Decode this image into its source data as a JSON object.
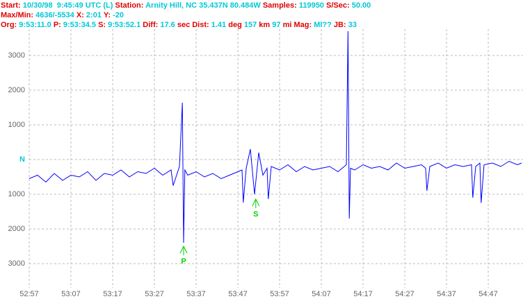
{
  "header": {
    "lines": [
      [
        "Start:",
        "10/30/98  9:45:49 UTC (L)",
        "Station:",
        "Arnity Hill, NC 35.437N 80.484W",
        "Samples:",
        "119950",
        "S/Sec:",
        "50.00"
      ],
      [
        "Max/Min:",
        "4636/-5534",
        "X:",
        "2:01",
        "Y:",
        "-20"
      ],
      [
        "Org:",
        "9:53:11.0",
        "P:",
        "9:53:34.5",
        "S:",
        "9:53:52.1",
        "Diff:",
        "17.6",
        "sec Dist:",
        "1.41",
        "deg",
        "157",
        "km",
        "97",
        "mi Mag:",
        "Ml??",
        "JB:",
        "33"
      ]
    ]
  },
  "chart_data": {
    "type": "line",
    "grid": true,
    "xlim": [
      3177,
      3295.33
    ],
    "ylim": [
      -3700,
      3760
    ],
    "xticks": [
      {
        "value": 3177,
        "label": "52:57"
      },
      {
        "value": 3187,
        "label": "53:07"
      },
      {
        "value": 3197,
        "label": "53:17"
      },
      {
        "value": 3207,
        "label": "53:27"
      },
      {
        "value": 3217,
        "label": "53:37"
      },
      {
        "value": 3227,
        "label": "53:47"
      },
      {
        "value": 3237,
        "label": "53:57"
      },
      {
        "value": 3247,
        "label": "54:07"
      },
      {
        "value": 3257,
        "label": "54:17"
      },
      {
        "value": 3267,
        "label": "54:27"
      },
      {
        "value": 3277,
        "label": "54:37"
      },
      {
        "value": 3287,
        "label": "54:47"
      }
    ],
    "yticks": [
      3000,
      2000,
      1000,
      {
        "value": 0,
        "label": "N"
      },
      {
        "value": -1000,
        "label": "1000"
      },
      {
        "value": -2000,
        "label": "2000"
      },
      {
        "value": -3000,
        "label": "3000"
      }
    ],
    "x": [
      3177,
      3179,
      3181,
      3183,
      3185,
      3187,
      3189,
      3191,
      3193,
      3195,
      3197,
      3199,
      3201,
      3203,
      3205,
      3207,
      3209,
      3211,
      3211.5,
      3213,
      3213.7,
      3214,
      3214.3,
      3215,
      3217,
      3219,
      3221,
      3223,
      3225,
      3227,
      3228,
      3228.3,
      3229,
      3230,
      3231,
      3232,
      3233,
      3234,
      3234.3,
      3235,
      3237,
      3239,
      3241,
      3243,
      3245,
      3247,
      3249,
      3251,
      3253,
      3253.4,
      3253.7,
      3254,
      3255,
      3257,
      3259,
      3261,
      3263,
      3265,
      3267,
      3269,
      3271,
      3272,
      3272.3,
      3273,
      3275,
      3277,
      3279,
      3281,
      3283,
      3283.3,
      3284,
      3285,
      3285.3,
      3286,
      3288,
      3290,
      3292,
      3294,
      3295
    ],
    "series": [
      {
        "color": "#0000ff",
        "values": [
          -550,
          -450,
          -650,
          -400,
          -600,
          -450,
          -500,
          -350,
          -600,
          -400,
          -450,
          -300,
          -500,
          -350,
          -400,
          -250,
          -450,
          -300,
          -750,
          -200,
          1640,
          -2400,
          -300,
          -450,
          -350,
          -500,
          -400,
          -550,
          -450,
          -350,
          -300,
          -1240,
          -250,
          300,
          -1000,
          200,
          -450,
          -250,
          -1140,
          -200,
          -300,
          -150,
          -350,
          -200,
          -300,
          -250,
          -200,
          -350,
          -150,
          3700,
          -1700,
          -250,
          -300,
          -150,
          -250,
          -200,
          -300,
          -100,
          -250,
          -200,
          -150,
          -250,
          -900,
          -200,
          -100,
          -250,
          -150,
          -200,
          -150,
          -1100,
          -200,
          -100,
          -1250,
          -150,
          -100,
          -200,
          -50,
          -150,
          -100
        ]
      }
    ],
    "annotations": [
      {
        "text": "P",
        "x": 3214,
        "y": -2500,
        "color": "#00d000"
      },
      {
        "text": "S",
        "x": 3231.3,
        "y": -1140,
        "color": "#00d000"
      }
    ]
  }
}
